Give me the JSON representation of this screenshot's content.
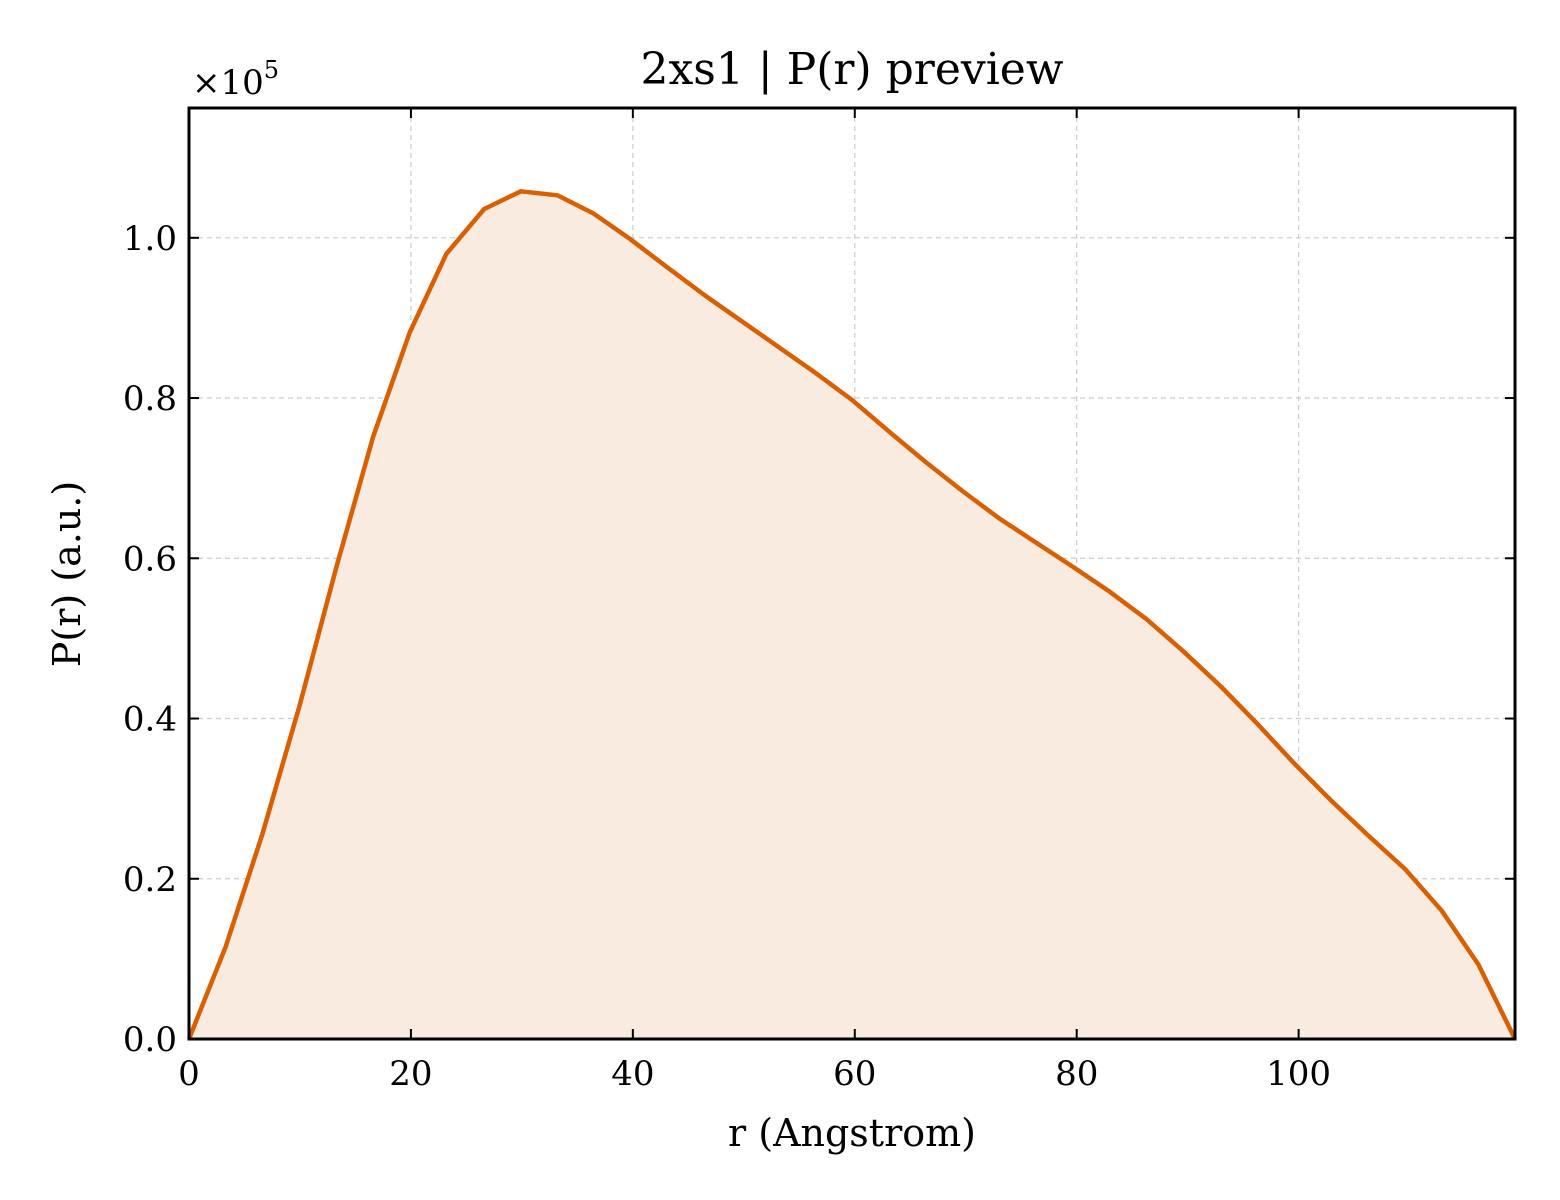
{
  "chart_data": {
    "type": "area",
    "title": "2xs1 | P(r) preview",
    "xlabel": "r (Angstrom)",
    "ylabel": "P(r) (a.u.)",
    "y_multiplier_base": "×10",
    "y_multiplier_exponent": "5",
    "xlim": [
      0,
      119.5
    ],
    "ylim": [
      0,
      1.162
    ],
    "x_ticks": [
      0,
      20,
      40,
      60,
      80,
      100
    ],
    "x_tick_labels": [
      "0",
      "20",
      "40",
      "60",
      "80",
      "100"
    ],
    "y_ticks": [
      0.0,
      0.2,
      0.4,
      0.6,
      0.8,
      1.0
    ],
    "y_tick_labels": [
      "0.0",
      "0.2",
      "0.4",
      "0.6",
      "0.8",
      "1.0"
    ],
    "grid": true,
    "line_color": "#d95f02",
    "fill_color": "#f9ebe0",
    "series": [
      {
        "x": [
          0,
          3.3,
          6.6,
          10.0,
          13.3,
          16.6,
          19.9,
          23.2,
          26.6,
          29.9,
          33.2,
          36.5,
          39.8,
          43.2,
          46.5,
          49.8,
          53.1,
          56.4,
          59.8,
          63.1,
          66.4,
          69.7,
          73.0,
          76.4,
          79.7,
          83.0,
          86.3,
          89.6,
          93.0,
          96.3,
          99.6,
          102.9,
          106.2,
          109.6,
          112.9,
          116.2,
          119.5
        ],
        "y": [
          0.0,
          0.115,
          0.255,
          0.418,
          0.59,
          0.752,
          0.882,
          0.98,
          1.036,
          1.058,
          1.053,
          1.03,
          0.998,
          0.962,
          0.928,
          0.896,
          0.864,
          0.832,
          0.797,
          0.758,
          0.72,
          0.684,
          0.65,
          0.619,
          0.589,
          0.558,
          0.524,
          0.484,
          0.44,
          0.393,
          0.344,
          0.298,
          0.255,
          0.212,
          0.16,
          0.093,
          0.0
        ]
      }
    ]
  }
}
